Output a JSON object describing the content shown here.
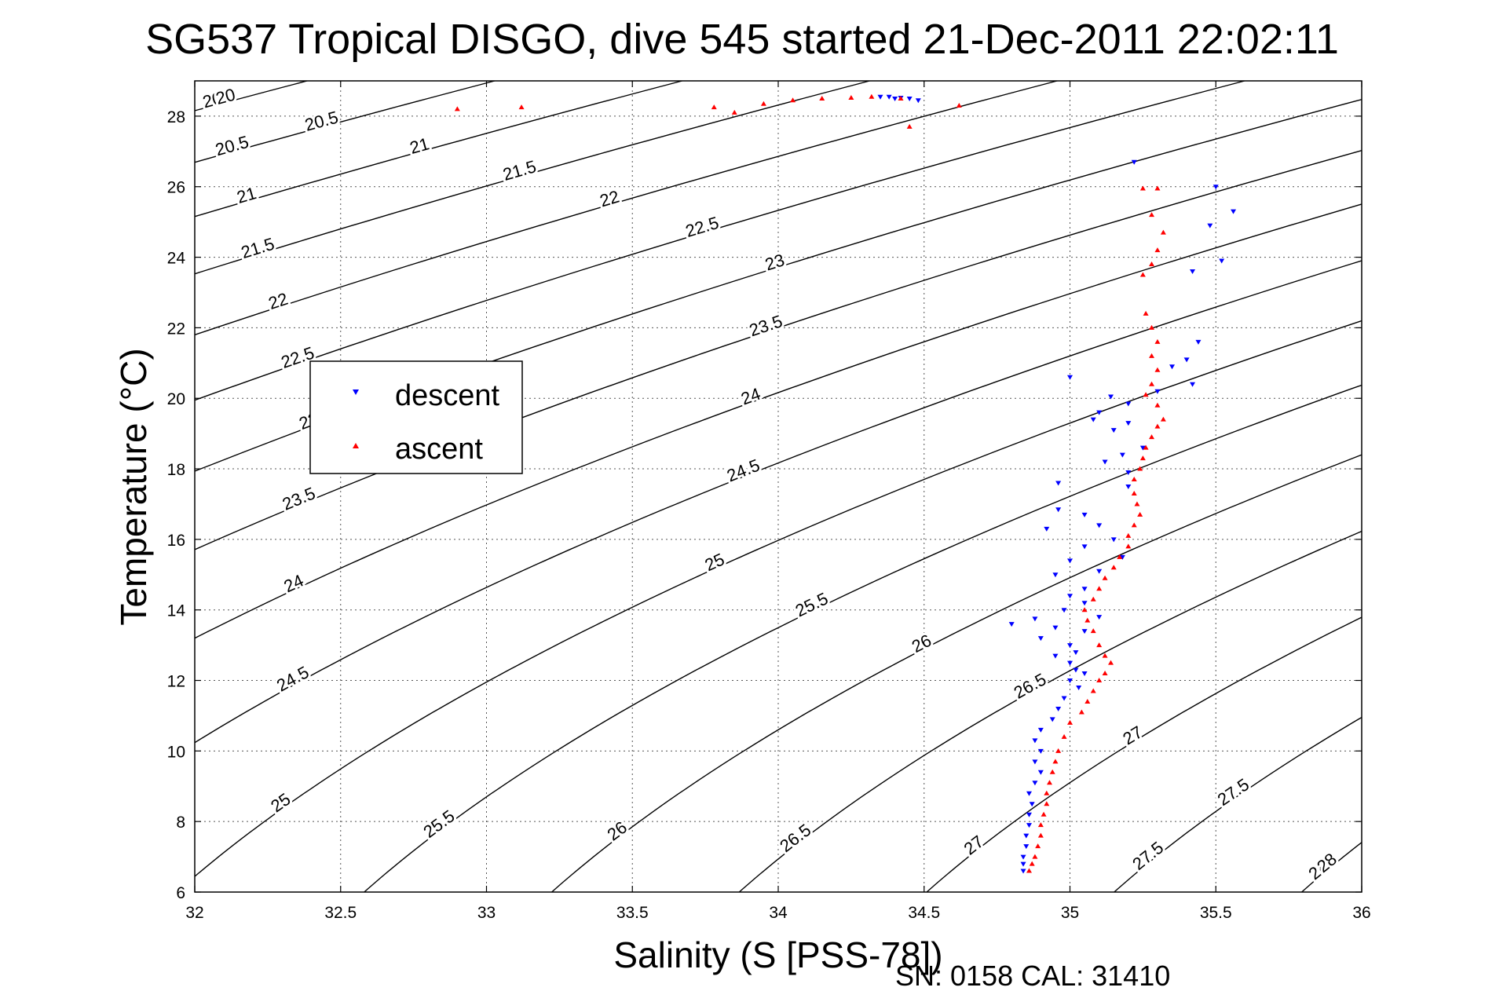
{
  "chart_data": {
    "type": "scatter",
    "title": "SG537 Tropical DISGO, dive 545 started 21-Dec-2011 22:02:11",
    "xlabel": "Salinity (S [PSS-78])",
    "ylabel": "Temperature (°C)",
    "xlim": [
      32,
      36
    ],
    "ylim": [
      6,
      29
    ],
    "x_ticks": [
      32,
      32.5,
      33,
      33.5,
      34,
      34.5,
      35,
      35.5,
      36
    ],
    "x_tick_labels": [
      "32",
      "32.5",
      "33",
      "33.5",
      "34",
      "34.5",
      "35",
      "35.5",
      "36"
    ],
    "y_ticks": [
      6,
      8,
      10,
      12,
      14,
      16,
      18,
      20,
      22,
      24,
      26,
      28
    ],
    "y_tick_labels": [
      "6",
      "8",
      "10",
      "12",
      "14",
      "16",
      "18",
      "20",
      "22",
      "24",
      "26",
      "28"
    ],
    "grid": true,
    "legend_position": "middle-left",
    "footer": "SN: 0158  CAL: 31410",
    "contours": {
      "variable": "sigma-theta density",
      "levels": [
        20,
        20.5,
        21,
        21.5,
        22,
        22.5,
        23,
        23.5,
        24,
        24.5,
        25,
        25.5,
        26,
        26.5,
        27,
        27.5,
        28
      ],
      "labels": [
        "20",
        "20.5",
        "21",
        "21.5",
        "22",
        "22.5",
        "23",
        "23.5",
        "24",
        "24.5",
        "25",
        "25.5",
        "26",
        "26.5",
        "27",
        "27.5",
        "28"
      ]
    },
    "series": [
      {
        "name": "descent",
        "color": "#0000ff",
        "marker": "triangle-down",
        "points": [
          [
            34.35,
            28.55
          ],
          [
            34.38,
            28.55
          ],
          [
            34.42,
            28.52
          ],
          [
            34.45,
            28.5
          ],
          [
            34.48,
            28.45
          ],
          [
            34.4,
            28.5
          ],
          [
            35.22,
            26.7
          ],
          [
            35.5,
            26.0
          ],
          [
            35.56,
            25.3
          ],
          [
            35.48,
            24.9
          ],
          [
            35.52,
            23.9
          ],
          [
            35.42,
            23.6
          ],
          [
            35.44,
            21.6
          ],
          [
            35.4,
            21.1
          ],
          [
            35.35,
            20.9
          ],
          [
            35.42,
            20.4
          ],
          [
            35.3,
            20.2
          ],
          [
            35.0,
            20.6
          ],
          [
            35.14,
            20.05
          ],
          [
            35.2,
            19.85
          ],
          [
            35.1,
            19.6
          ],
          [
            35.2,
            19.3
          ],
          [
            35.08,
            19.4
          ],
          [
            35.15,
            19.1
          ],
          [
            35.25,
            18.6
          ],
          [
            35.18,
            18.4
          ],
          [
            35.12,
            18.2
          ],
          [
            35.2,
            17.9
          ],
          [
            35.2,
            17.5
          ],
          [
            34.96,
            17.6
          ],
          [
            34.96,
            16.85
          ],
          [
            35.05,
            16.7
          ],
          [
            35.1,
            16.4
          ],
          [
            34.92,
            16.3
          ],
          [
            35.15,
            16.0
          ],
          [
            35.05,
            15.8
          ],
          [
            35.18,
            15.5
          ],
          [
            35.0,
            15.4
          ],
          [
            35.1,
            15.1
          ],
          [
            34.95,
            15.0
          ],
          [
            35.05,
            14.6
          ],
          [
            35.0,
            14.4
          ],
          [
            35.05,
            14.2
          ],
          [
            34.98,
            14.0
          ],
          [
            35.1,
            13.8
          ],
          [
            34.88,
            13.75
          ],
          [
            34.8,
            13.6
          ],
          [
            34.95,
            13.5
          ],
          [
            35.05,
            13.4
          ],
          [
            34.9,
            13.2
          ],
          [
            35.0,
            13.0
          ],
          [
            35.02,
            12.8
          ],
          [
            34.95,
            12.7
          ],
          [
            35.0,
            12.5
          ],
          [
            35.02,
            12.3
          ],
          [
            35.05,
            12.2
          ],
          [
            35.0,
            12.0
          ],
          [
            35.03,
            11.8
          ],
          [
            34.98,
            11.5
          ],
          [
            34.96,
            11.2
          ],
          [
            34.94,
            10.9
          ],
          [
            34.9,
            10.6
          ],
          [
            34.88,
            10.3
          ],
          [
            34.9,
            10.0
          ],
          [
            34.88,
            9.7
          ],
          [
            34.9,
            9.4
          ],
          [
            34.88,
            9.1
          ],
          [
            34.86,
            8.8
          ],
          [
            34.87,
            8.5
          ],
          [
            34.86,
            8.2
          ],
          [
            34.86,
            7.9
          ],
          [
            34.85,
            7.6
          ],
          [
            34.85,
            7.3
          ],
          [
            34.84,
            7.0
          ],
          [
            34.84,
            6.8
          ],
          [
            34.84,
            6.6
          ]
        ]
      },
      {
        "name": "ascent",
        "color": "#ff0000",
        "marker": "triangle-up",
        "points": [
          [
            32.9,
            28.2
          ],
          [
            33.12,
            28.25
          ],
          [
            33.78,
            28.25
          ],
          [
            33.85,
            28.1
          ],
          [
            33.95,
            28.35
          ],
          [
            34.05,
            28.45
          ],
          [
            34.15,
            28.5
          ],
          [
            34.25,
            28.52
          ],
          [
            34.32,
            28.55
          ],
          [
            34.42,
            28.5
          ],
          [
            34.62,
            28.3
          ],
          [
            34.45,
            27.7
          ],
          [
            35.25,
            25.95
          ],
          [
            35.3,
            25.95
          ],
          [
            35.28,
            25.2
          ],
          [
            35.32,
            24.7
          ],
          [
            35.3,
            24.2
          ],
          [
            35.28,
            23.8
          ],
          [
            35.25,
            23.5
          ],
          [
            35.26,
            22.4
          ],
          [
            35.28,
            22.0
          ],
          [
            35.3,
            21.6
          ],
          [
            35.28,
            21.2
          ],
          [
            35.3,
            20.8
          ],
          [
            35.28,
            20.4
          ],
          [
            35.26,
            20.1
          ],
          [
            35.3,
            19.8
          ],
          [
            35.32,
            19.4
          ],
          [
            35.3,
            19.2
          ],
          [
            35.28,
            18.9
          ],
          [
            35.26,
            18.6
          ],
          [
            35.25,
            18.3
          ],
          [
            35.24,
            18.0
          ],
          [
            35.22,
            17.7
          ],
          [
            35.22,
            17.3
          ],
          [
            35.23,
            17.0
          ],
          [
            35.24,
            16.7
          ],
          [
            35.22,
            16.4
          ],
          [
            35.2,
            16.1
          ],
          [
            35.2,
            15.8
          ],
          [
            35.17,
            15.5
          ],
          [
            35.15,
            15.2
          ],
          [
            35.12,
            14.9
          ],
          [
            35.1,
            14.6
          ],
          [
            35.08,
            14.3
          ],
          [
            35.05,
            14.0
          ],
          [
            35.06,
            13.7
          ],
          [
            35.08,
            13.4
          ],
          [
            35.1,
            13.0
          ],
          [
            35.12,
            12.7
          ],
          [
            35.14,
            12.5
          ],
          [
            35.12,
            12.2
          ],
          [
            35.1,
            12.0
          ],
          [
            35.08,
            11.7
          ],
          [
            35.06,
            11.4
          ],
          [
            35.04,
            11.1
          ],
          [
            35.0,
            10.8
          ],
          [
            34.98,
            10.4
          ],
          [
            34.96,
            10.0
          ],
          [
            34.95,
            9.7
          ],
          [
            34.94,
            9.4
          ],
          [
            34.93,
            9.1
          ],
          [
            34.92,
            8.8
          ],
          [
            34.92,
            8.5
          ],
          [
            34.91,
            8.2
          ],
          [
            34.9,
            7.9
          ],
          [
            34.9,
            7.6
          ],
          [
            34.89,
            7.3
          ],
          [
            34.88,
            7.0
          ],
          [
            34.87,
            6.8
          ],
          [
            34.86,
            6.6
          ]
        ]
      }
    ]
  }
}
